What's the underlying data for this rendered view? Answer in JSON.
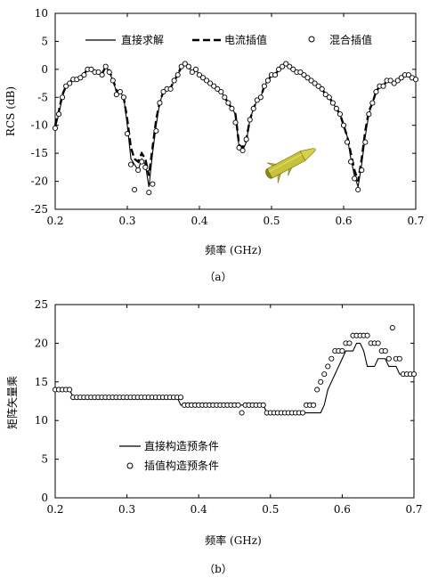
{
  "chart_data": [
    {
      "type": "line",
      "caption": "（a）",
      "xlabel": "频率 (GHz)",
      "ylabel": "RCS (dB)",
      "xlim": [
        0.2,
        0.7
      ],
      "ylim": [
        -25,
        10
      ],
      "xticks": [
        "0.2",
        "0.3",
        "0.4",
        "0.5",
        "0.6",
        "0.7"
      ],
      "yticks": [
        "10",
        "5",
        "0",
        "-5",
        "-10",
        "-15",
        "-20",
        "-25"
      ],
      "grid": false,
      "legend": "top",
      "series": [
        {
          "name": "直接求解",
          "style": "solid",
          "x": [
            0.2,
            0.205,
            0.21,
            0.215,
            0.22,
            0.225,
            0.23,
            0.235,
            0.24,
            0.245,
            0.25,
            0.255,
            0.26,
            0.265,
            0.27,
            0.275,
            0.28,
            0.285,
            0.29,
            0.295,
            0.3,
            0.305,
            0.31,
            0.315,
            0.32,
            0.325,
            0.33,
            0.335,
            0.34,
            0.345,
            0.35,
            0.355,
            0.36,
            0.365,
            0.37,
            0.375,
            0.38,
            0.385,
            0.39,
            0.395,
            0.4,
            0.405,
            0.41,
            0.415,
            0.42,
            0.425,
            0.43,
            0.435,
            0.44,
            0.445,
            0.45,
            0.455,
            0.46,
            0.465,
            0.47,
            0.475,
            0.48,
            0.485,
            0.49,
            0.495,
            0.5,
            0.505,
            0.51,
            0.515,
            0.52,
            0.525,
            0.53,
            0.535,
            0.54,
            0.545,
            0.55,
            0.555,
            0.56,
            0.565,
            0.57,
            0.575,
            0.58,
            0.585,
            0.59,
            0.595,
            0.6,
            0.605,
            0.61,
            0.615,
            0.62,
            0.625,
            0.63,
            0.635,
            0.64,
            0.645,
            0.65,
            0.655,
            0.66,
            0.665,
            0.67,
            0.675,
            0.68,
            0.685,
            0.69,
            0.695,
            0.7
          ],
          "y": [
            -10.5,
            -8,
            -5,
            -3,
            -2.5,
            -1.8,
            -1.8,
            -1.5,
            -1,
            0,
            0,
            -0.5,
            -0.5,
            -1,
            0.5,
            -0.5,
            -2,
            -4,
            -4,
            -5,
            -10,
            -16,
            -17,
            -18,
            -16,
            -17,
            -21,
            -15,
            -10,
            -6,
            -4,
            -3.5,
            -3.5,
            -2,
            -1,
            0.5,
            1,
            0.5,
            -0.5,
            0,
            -1,
            -1.5,
            -2,
            -2.5,
            -3,
            -3.5,
            -4,
            -5,
            -6,
            -7,
            -8,
            -14,
            -14.5,
            -13,
            -9,
            -7,
            -5.5,
            -5,
            -3,
            -2,
            -1,
            -1,
            0,
            0.5,
            0.8,
            0.5,
            0,
            -0.5,
            -0.5,
            -1,
            -1.5,
            -2,
            -2.5,
            -3,
            -3.5,
            -4.5,
            -5,
            -6,
            -7,
            -8,
            -10,
            -12,
            -16,
            -19,
            -21,
            -17,
            -12,
            -8,
            -6,
            -4,
            -3,
            -3,
            -2,
            -2,
            -2.5,
            -2,
            -1.5,
            -1,
            -1,
            -1.5,
            -1.8
          ]
        },
        {
          "name": "电流插值",
          "style": "dashed",
          "x": [
            0.2,
            0.205,
            0.21,
            0.215,
            0.22,
            0.225,
            0.23,
            0.235,
            0.24,
            0.245,
            0.25,
            0.255,
            0.26,
            0.265,
            0.27,
            0.275,
            0.28,
            0.285,
            0.29,
            0.295,
            0.3,
            0.305,
            0.31,
            0.315,
            0.32,
            0.325,
            0.33,
            0.335,
            0.34,
            0.345,
            0.35,
            0.355,
            0.36,
            0.365,
            0.37,
            0.375,
            0.38,
            0.385,
            0.39,
            0.395,
            0.4,
            0.405,
            0.41,
            0.415,
            0.42,
            0.425,
            0.43,
            0.435,
            0.44,
            0.445,
            0.45,
            0.455,
            0.46,
            0.465,
            0.47,
            0.475,
            0.48,
            0.485,
            0.49,
            0.495,
            0.5,
            0.505,
            0.51,
            0.515,
            0.52,
            0.525,
            0.53,
            0.535,
            0.54,
            0.545,
            0.55,
            0.555,
            0.56,
            0.565,
            0.57,
            0.575,
            0.58,
            0.585,
            0.59,
            0.595,
            0.6,
            0.605,
            0.61,
            0.615,
            0.62,
            0.625,
            0.63,
            0.635,
            0.64,
            0.645,
            0.65,
            0.655,
            0.66,
            0.665,
            0.67,
            0.675,
            0.68,
            0.685,
            0.69,
            0.695,
            0.7
          ],
          "y": [
            -10,
            -7.5,
            -4.5,
            -3,
            -2.3,
            -1.8,
            -1.8,
            -1.3,
            -0.8,
            0,
            0,
            -0.3,
            -0.5,
            -0.8,
            0.5,
            -0.3,
            -1.8,
            -3.8,
            -4,
            -5,
            -9,
            -14,
            -16,
            -16.5,
            -15,
            -16,
            -19,
            -14,
            -9,
            -5.8,
            -4,
            -3.5,
            -3.3,
            -2,
            -1,
            0.5,
            1,
            0.5,
            -0.5,
            0,
            -1,
            -1.5,
            -2,
            -2.5,
            -3,
            -3.5,
            -4,
            -5,
            -6,
            -7,
            -8,
            -13.5,
            -14,
            -12.5,
            -9,
            -7,
            -5.5,
            -5,
            -3,
            -2,
            -1,
            -1,
            0,
            0.5,
            0.8,
            0.5,
            0,
            -0.5,
            -0.5,
            -1,
            -1.5,
            -2,
            -2.5,
            -3,
            -3.5,
            -4.5,
            -5,
            -6,
            -7,
            -8,
            -10,
            -12,
            -15,
            -18,
            -20,
            -16,
            -11,
            -7.5,
            -6,
            -4,
            -3,
            -3,
            -2,
            -2,
            -2.5,
            -2,
            -1.5,
            -1,
            -1,
            -1.5,
            -1.8
          ]
        },
        {
          "name": "混合插值",
          "style": "circle",
          "x": [
            0.2,
            0.205,
            0.21,
            0.215,
            0.22,
            0.225,
            0.23,
            0.235,
            0.24,
            0.245,
            0.25,
            0.255,
            0.26,
            0.265,
            0.27,
            0.275,
            0.28,
            0.285,
            0.29,
            0.295,
            0.3,
            0.305,
            0.31,
            0.315,
            0.32,
            0.325,
            0.33,
            0.335,
            0.34,
            0.345,
            0.35,
            0.355,
            0.36,
            0.365,
            0.37,
            0.375,
            0.38,
            0.385,
            0.39,
            0.395,
            0.4,
            0.405,
            0.41,
            0.415,
            0.42,
            0.425,
            0.43,
            0.435,
            0.44,
            0.445,
            0.45,
            0.455,
            0.46,
            0.465,
            0.47,
            0.475,
            0.48,
            0.485,
            0.49,
            0.495,
            0.5,
            0.505,
            0.51,
            0.515,
            0.52,
            0.525,
            0.53,
            0.535,
            0.54,
            0.545,
            0.55,
            0.555,
            0.56,
            0.565,
            0.57,
            0.575,
            0.58,
            0.585,
            0.59,
            0.595,
            0.6,
            0.605,
            0.61,
            0.615,
            0.62,
            0.625,
            0.63,
            0.635,
            0.64,
            0.645,
            0.65,
            0.655,
            0.66,
            0.665,
            0.67,
            0.675,
            0.68,
            0.685,
            0.69,
            0.695,
            0.7
          ],
          "y": [
            -10.5,
            -8,
            -5,
            -3,
            -2.5,
            -1.8,
            -1.8,
            -1.5,
            -1,
            0,
            0,
            -0.5,
            -0.5,
            -1,
            0.5,
            -0.5,
            -2,
            -4.5,
            -4,
            -5,
            -11.5,
            -17,
            -21.5,
            -18,
            -16.5,
            -17.5,
            -22,
            -20.5,
            -11,
            -6,
            -4,
            -3.5,
            -3.5,
            -2,
            -1,
            0.5,
            1,
            0.5,
            -0.5,
            0,
            -1,
            -1.5,
            -2,
            -2.5,
            -3,
            -3.5,
            -4,
            -5,
            -6,
            -7,
            -9.5,
            -14,
            -14.5,
            -12.5,
            -9,
            -7,
            -5.5,
            -5,
            -3,
            -2,
            -1,
            -1,
            0,
            0.5,
            1,
            0.5,
            0,
            -0.5,
            -0.5,
            -1,
            -1.5,
            -2,
            -2.5,
            -3,
            -3.5,
            -4.5,
            -5,
            -6,
            -7,
            -8,
            -10,
            -13,
            -16.5,
            -19.5,
            -21.5,
            -18,
            -13,
            -8,
            -6,
            -4,
            -3,
            -3,
            -2,
            -2,
            -2.5,
            -2,
            -1.5,
            -1,
            -1,
            -1.5,
            -1.8
          ]
        }
      ]
    },
    {
      "type": "line",
      "caption": "（b）",
      "xlabel": "频率 (GHz)",
      "ylabel": "矩阵矢量乘",
      "xlim": [
        0.2,
        0.7
      ],
      "ylim": [
        0,
        25
      ],
      "xticks": [
        "0.2",
        "0.3",
        "0.4",
        "0.5",
        "0.6",
        "0.7"
      ],
      "yticks": [
        "25",
        "20",
        "15",
        "10",
        "5",
        "0"
      ],
      "grid": false,
      "legend": "bottom-left",
      "series": [
        {
          "name": "直接构造预条件",
          "style": "solid",
          "x": [
            0.2,
            0.205,
            0.21,
            0.215,
            0.22,
            0.225,
            0.23,
            0.235,
            0.24,
            0.245,
            0.25,
            0.255,
            0.26,
            0.265,
            0.27,
            0.275,
            0.28,
            0.285,
            0.29,
            0.295,
            0.3,
            0.305,
            0.31,
            0.315,
            0.32,
            0.325,
            0.33,
            0.335,
            0.34,
            0.345,
            0.35,
            0.355,
            0.36,
            0.365,
            0.37,
            0.375,
            0.38,
            0.385,
            0.39,
            0.395,
            0.4,
            0.405,
            0.41,
            0.415,
            0.42,
            0.425,
            0.43,
            0.435,
            0.44,
            0.445,
            0.45,
            0.455,
            0.46,
            0.465,
            0.47,
            0.475,
            0.48,
            0.485,
            0.49,
            0.495,
            0.5,
            0.505,
            0.51,
            0.515,
            0.52,
            0.525,
            0.53,
            0.535,
            0.54,
            0.545,
            0.55,
            0.555,
            0.56,
            0.565,
            0.57,
            0.575,
            0.58,
            0.585,
            0.59,
            0.595,
            0.6,
            0.605,
            0.61,
            0.615,
            0.62,
            0.625,
            0.63,
            0.635,
            0.64,
            0.645,
            0.65,
            0.655,
            0.66,
            0.665,
            0.67,
            0.675,
            0.68,
            0.685,
            0.69,
            0.695,
            0.7
          ],
          "y": [
            14,
            14,
            14,
            14,
            14,
            13,
            13,
            13,
            13,
            13,
            13,
            13,
            13,
            13,
            13,
            13,
            13,
            13,
            13,
            13,
            13,
            13,
            13,
            13,
            13,
            13,
            13,
            13,
            13,
            13,
            13,
            13,
            13,
            13,
            13,
            12,
            12,
            12,
            12,
            12,
            12,
            12,
            12,
            12,
            12,
            12,
            12,
            12,
            12,
            12,
            12,
            12,
            12,
            12,
            12,
            12,
            12,
            12,
            12,
            11,
            11,
            11,
            11,
            11,
            11,
            11,
            11,
            11,
            11,
            11,
            11,
            11,
            11,
            11,
            11,
            12,
            14,
            15,
            16,
            17,
            18,
            19,
            19,
            19,
            20,
            20,
            19,
            17,
            17,
            17,
            18,
            18,
            18,
            17,
            17,
            17,
            16,
            16,
            16,
            16,
            16
          ]
        },
        {
          "name": "插值构造预条件",
          "style": "circle",
          "x": [
            0.2,
            0.205,
            0.21,
            0.215,
            0.22,
            0.225,
            0.23,
            0.235,
            0.24,
            0.245,
            0.25,
            0.255,
            0.26,
            0.265,
            0.27,
            0.275,
            0.28,
            0.285,
            0.29,
            0.295,
            0.3,
            0.305,
            0.31,
            0.315,
            0.32,
            0.325,
            0.33,
            0.335,
            0.34,
            0.345,
            0.35,
            0.355,
            0.36,
            0.365,
            0.37,
            0.375,
            0.38,
            0.385,
            0.39,
            0.395,
            0.4,
            0.405,
            0.41,
            0.415,
            0.42,
            0.425,
            0.43,
            0.435,
            0.44,
            0.445,
            0.45,
            0.455,
            0.46,
            0.465,
            0.47,
            0.475,
            0.48,
            0.485,
            0.49,
            0.495,
            0.5,
            0.505,
            0.51,
            0.515,
            0.52,
            0.525,
            0.53,
            0.535,
            0.54,
            0.545,
            0.55,
            0.555,
            0.56,
            0.565,
            0.57,
            0.575,
            0.58,
            0.585,
            0.59,
            0.595,
            0.6,
            0.605,
            0.61,
            0.615,
            0.62,
            0.625,
            0.63,
            0.635,
            0.64,
            0.645,
            0.65,
            0.655,
            0.66,
            0.665,
            0.67,
            0.675,
            0.68,
            0.685,
            0.69,
            0.695,
            0.7
          ],
          "y": [
            14,
            14,
            14,
            14,
            14,
            13,
            13,
            13,
            13,
            13,
            13,
            13,
            13,
            13,
            13,
            13,
            13,
            13,
            13,
            13,
            13,
            13,
            13,
            13,
            13,
            13,
            13,
            13,
            13,
            13,
            13,
            13,
            13,
            13,
            13,
            13,
            12,
            12,
            12,
            12,
            12,
            12,
            12,
            12,
            12,
            12,
            12,
            12,
            12,
            12,
            12,
            12,
            11,
            12,
            12,
            12,
            12,
            12,
            12,
            11,
            11,
            11,
            11,
            11,
            11,
            11,
            11,
            11,
            11,
            11,
            12,
            12,
            12,
            14,
            15,
            16,
            17,
            18,
            19,
            19,
            19,
            20,
            20,
            21,
            21,
            21,
            21,
            21,
            20,
            20,
            20,
            19,
            19,
            18,
            22,
            18,
            18,
            16,
            16,
            16,
            16
          ]
        }
      ]
    }
  ],
  "icon": "missile-model-icon",
  "colors": {
    "missile_body": "#c8c238",
    "missile_dark": "#6e6a12"
  }
}
